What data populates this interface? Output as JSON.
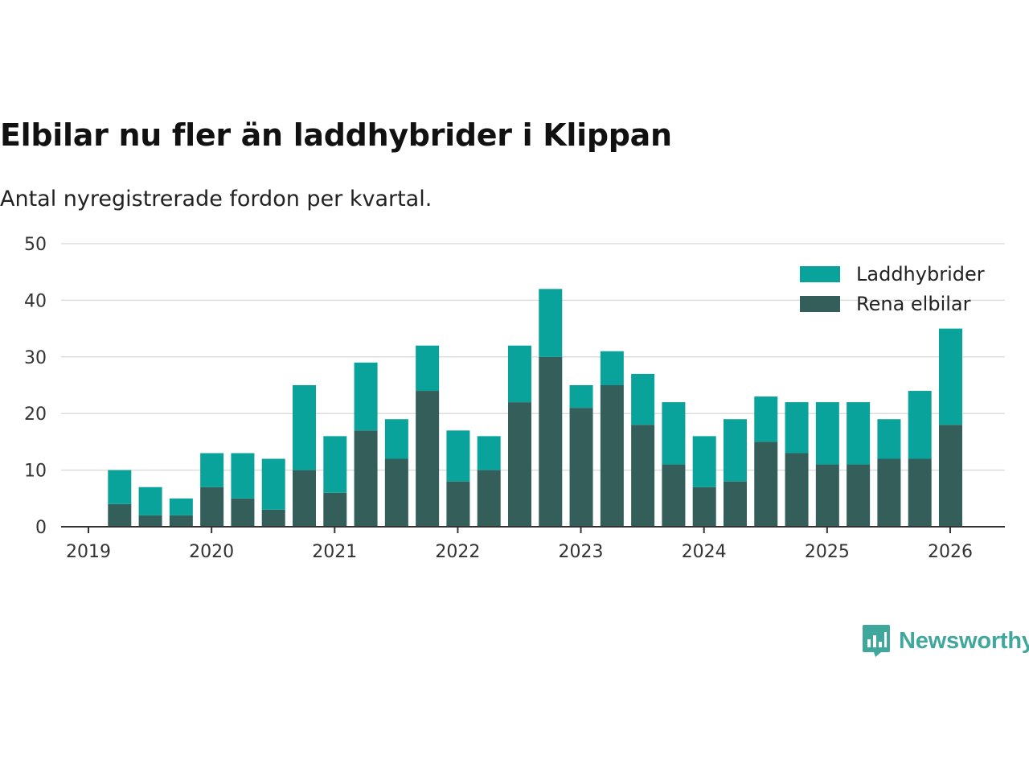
{
  "chart_data": {
    "type": "bar",
    "stacked": true,
    "title": "Elbilar nu fler än laddhybrider i Klippan",
    "subtitle": "Antal nyregistrerade fordon per kvartal.",
    "xlabel": "",
    "ylabel": "",
    "ylim": [
      0,
      50
    ],
    "y_ticks": [
      0,
      10,
      20,
      30,
      40,
      50
    ],
    "x_tick_labels": [
      "2019",
      "2020",
      "2021",
      "2022",
      "2023",
      "2024",
      "2025",
      "2026"
    ],
    "categories": [
      "2019 Q2",
      "2019 Q3",
      "2019 Q4",
      "2020 Q1",
      "2020 Q2",
      "2020 Q3",
      "2020 Q4",
      "2021 Q1",
      "2021 Q2",
      "2021 Q3",
      "2021 Q4",
      "2022 Q1",
      "2022 Q2",
      "2022 Q3",
      "2022 Q4",
      "2023 Q1",
      "2023 Q2",
      "2023 Q3",
      "2023 Q4",
      "2024 Q1",
      "2024 Q2",
      "2024 Q3",
      "2024 Q4",
      "2025 Q1",
      "2025 Q2",
      "2025 Q3",
      "2025 Q4",
      "2026 Q1"
    ],
    "series": [
      {
        "name": "Rena elbilar",
        "color": "#335e5a",
        "values": [
          4,
          2,
          2,
          7,
          5,
          3,
          10,
          6,
          17,
          12,
          24,
          8,
          10,
          22,
          30,
          21,
          25,
          18,
          11,
          7,
          8,
          15,
          13,
          11,
          11,
          12,
          12,
          18
        ]
      },
      {
        "name": "Laddhybrider",
        "color": "#0aa39b",
        "values": [
          6,
          5,
          3,
          6,
          8,
          9,
          15,
          10,
          12,
          7,
          8,
          9,
          6,
          10,
          12,
          4,
          6,
          9,
          11,
          9,
          11,
          8,
          9,
          11,
          11,
          7,
          12,
          17
        ]
      }
    ],
    "legend": {
      "position": "top-right",
      "order": [
        "Laddhybrider",
        "Rena elbilar"
      ]
    },
    "grid": true
  },
  "brand": {
    "name": "Newsworthy",
    "color": "#3fa79b",
    "icon": "newsworthy-logo-icon"
  }
}
